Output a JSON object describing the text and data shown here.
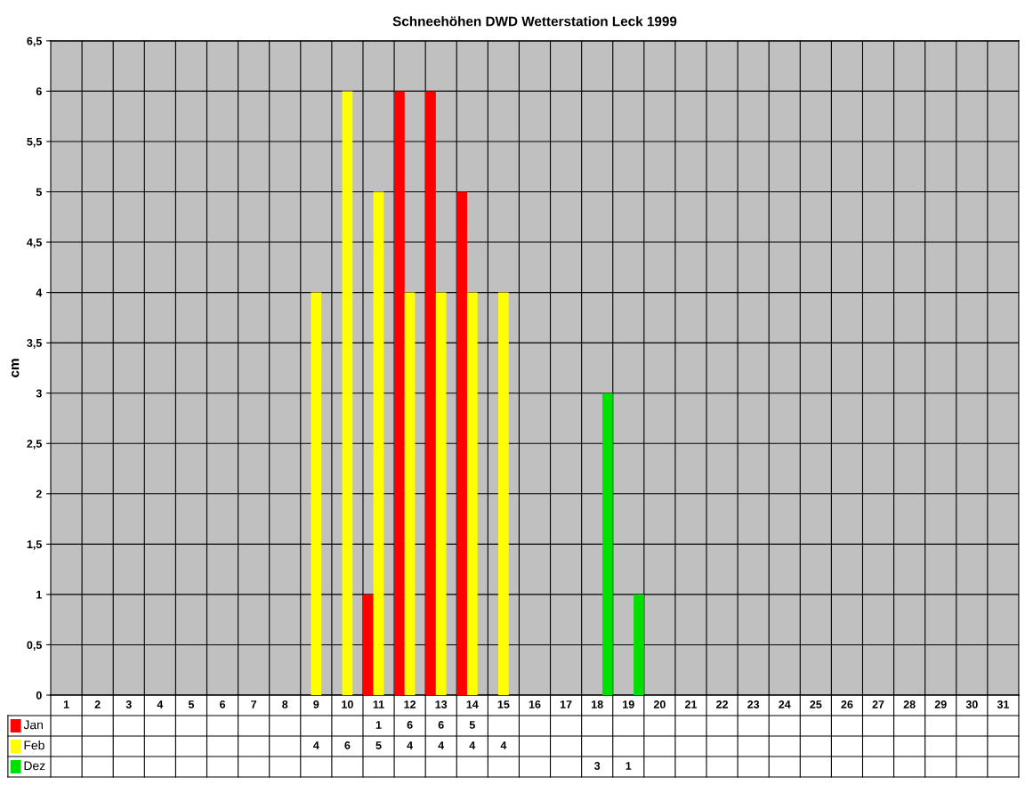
{
  "chart_data": {
    "type": "bar",
    "title": "Schneehöhen DWD Wetterstation Leck 1999",
    "ylabel": "cm",
    "categories": [
      "1",
      "2",
      "3",
      "4",
      "5",
      "6",
      "7",
      "8",
      "9",
      "10",
      "11",
      "12",
      "13",
      "14",
      "15",
      "16",
      "17",
      "18",
      "19",
      "20",
      "21",
      "22",
      "23",
      "24",
      "25",
      "26",
      "27",
      "28",
      "29",
      "30",
      "31"
    ],
    "series": [
      {
        "name": "Jan",
        "color": "#ff0000",
        "values": [
          null,
          null,
          null,
          null,
          null,
          null,
          null,
          null,
          null,
          null,
          1,
          6,
          6,
          5,
          null,
          null,
          null,
          null,
          null,
          null,
          null,
          null,
          null,
          null,
          null,
          null,
          null,
          null,
          null,
          null,
          null
        ]
      },
      {
        "name": "Feb",
        "color": "#ffff00",
        "values": [
          null,
          null,
          null,
          null,
          null,
          null,
          null,
          null,
          4,
          6,
          5,
          4,
          4,
          4,
          4,
          null,
          null,
          null,
          null,
          null,
          null,
          null,
          null,
          null,
          null,
          null,
          null,
          null,
          null,
          null,
          null
        ]
      },
      {
        "name": "Dez",
        "color": "#00e000",
        "values": [
          null,
          null,
          null,
          null,
          null,
          null,
          null,
          null,
          null,
          null,
          null,
          null,
          null,
          null,
          null,
          null,
          null,
          3,
          1,
          null,
          null,
          null,
          null,
          null,
          null,
          null,
          null,
          null,
          null,
          null,
          null
        ]
      }
    ],
    "ylim": [
      0,
      6.5
    ],
    "yticks": [
      0,
      {
        "value": 0.5,
        "label": "0,5"
      },
      1,
      {
        "value": 1.5,
        "label": "1,5"
      },
      2,
      {
        "value": 2.5,
        "label": "2,5"
      },
      3,
      {
        "value": 3.5,
        "label": "3,5"
      },
      4,
      {
        "value": 4.5,
        "label": "4,5"
      },
      5,
      {
        "value": 5.5,
        "label": "5,5"
      },
      6,
      {
        "value": 6.5,
        "label": "6,5"
      }
    ],
    "grid": true,
    "data_labels": true,
    "legend": "bottom left"
  }
}
